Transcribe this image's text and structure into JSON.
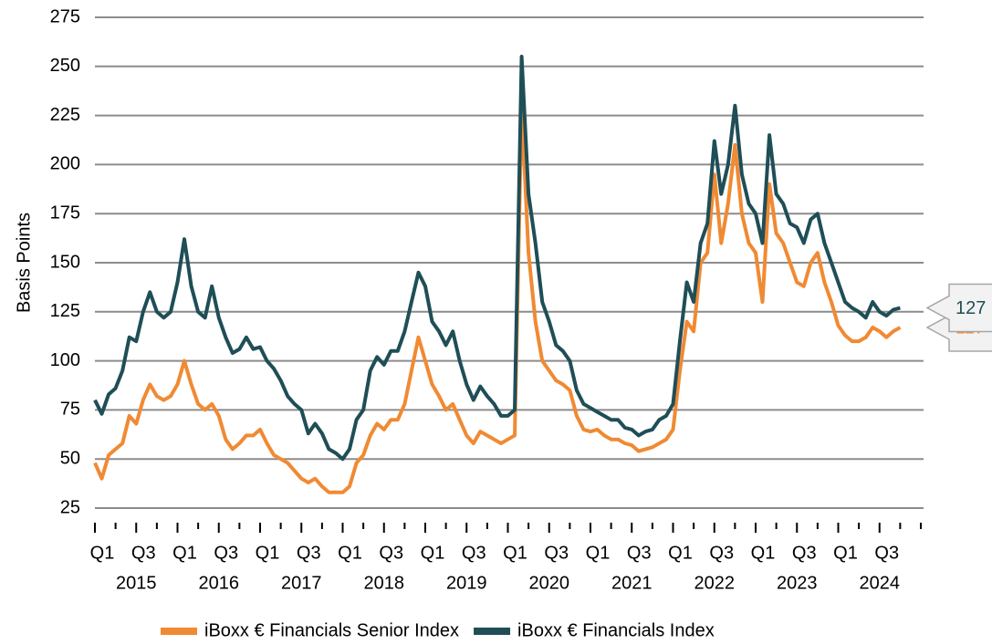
{
  "chart_data": {
    "type": "line",
    "y_label": "Basis Points",
    "x": [
      0,
      1,
      2,
      3,
      4,
      5,
      6,
      7,
      8,
      9,
      10,
      11,
      12,
      13,
      14,
      15,
      16,
      17,
      18,
      19,
      20,
      21,
      22,
      23,
      24,
      25,
      26,
      27,
      28,
      29,
      30,
      31,
      32,
      33,
      34,
      35,
      36,
      37,
      38,
      39,
      40,
      41,
      42,
      43,
      44,
      45,
      46,
      47,
      48,
      49,
      50,
      51,
      52,
      53,
      54,
      55,
      56,
      57,
      58,
      59,
      60,
      61,
      62,
      63,
      64,
      65,
      66,
      67,
      68,
      69,
      70,
      71,
      72,
      73,
      74,
      75,
      76,
      77,
      78,
      79,
      80,
      81,
      82,
      83,
      84,
      85,
      86,
      87,
      88,
      89,
      90,
      91,
      92,
      93,
      94,
      95,
      96,
      97,
      98,
      99,
      100,
      101,
      102,
      103,
      104,
      105,
      106,
      107,
      108,
      109,
      110,
      111,
      112,
      113,
      114,
      115,
      116,
      117
    ],
    "xlim": [
      0,
      120
    ],
    "xticks": [
      {
        "value": 0,
        "label": "Q1"
      },
      {
        "value": 6,
        "label": "Q3"
      },
      {
        "value": 12,
        "label": "Q1"
      },
      {
        "value": 18,
        "label": "Q3"
      },
      {
        "value": 24,
        "label": "Q1"
      },
      {
        "value": 30,
        "label": "Q3"
      },
      {
        "value": 36,
        "label": "Q1"
      },
      {
        "value": 42,
        "label": "Q3"
      },
      {
        "value": 48,
        "label": "Q1"
      },
      {
        "value": 54,
        "label": "Q3"
      },
      {
        "value": 60,
        "label": "Q1"
      },
      {
        "value": 66,
        "label": "Q3"
      },
      {
        "value": 72,
        "label": "Q1"
      },
      {
        "value": 78,
        "label": "Q3"
      },
      {
        "value": 84,
        "label": "Q1"
      },
      {
        "value": 90,
        "label": "Q3"
      },
      {
        "value": 96,
        "label": "Q1"
      },
      {
        "value": 102,
        "label": "Q3"
      },
      {
        "value": 108,
        "label": "Q1"
      },
      {
        "value": 114,
        "label": "Q3"
      }
    ],
    "xminor_ticks": [
      3,
      9,
      15,
      21,
      27,
      33,
      39,
      45,
      51,
      57,
      63,
      69,
      75,
      81,
      87,
      93,
      99,
      105,
      111,
      117,
      120
    ],
    "x_groups": [
      {
        "value": 6,
        "label": "2015"
      },
      {
        "value": 18,
        "label": "2016"
      },
      {
        "value": 30,
        "label": "2017"
      },
      {
        "value": 42,
        "label": "2018"
      },
      {
        "value": 54,
        "label": "2019"
      },
      {
        "value": 66,
        "label": "2020"
      },
      {
        "value": 78,
        "label": "2021"
      },
      {
        "value": 90,
        "label": "2022"
      },
      {
        "value": 102,
        "label": "2023"
      },
      {
        "value": 114,
        "label": "2024"
      }
    ],
    "ylim": [
      25,
      275
    ],
    "yticks": [
      25,
      50,
      75,
      100,
      125,
      150,
      175,
      200,
      225,
      250,
      275
    ],
    "grid": true,
    "legend": "bottom",
    "series": [
      {
        "name": "iBoxx € Financials Senior Index",
        "color": "#f08a33",
        "last_label": 117,
        "values": [
          48,
          40,
          52,
          55,
          58,
          72,
          68,
          80,
          88,
          82,
          80,
          82,
          88,
          100,
          88,
          78,
          75,
          78,
          72,
          60,
          55,
          58,
          62,
          62,
          65,
          58,
          52,
          50,
          48,
          44,
          40,
          38,
          40,
          36,
          33,
          33,
          33,
          36,
          48,
          52,
          62,
          68,
          65,
          70,
          70,
          78,
          95,
          112,
          100,
          88,
          82,
          75,
          78,
          70,
          62,
          58,
          64,
          62,
          60,
          58,
          60,
          62,
          230,
          155,
          120,
          100,
          95,
          90,
          88,
          85,
          72,
          65,
          64,
          65,
          62,
          60,
          60,
          58,
          57,
          54,
          55,
          56,
          58,
          60,
          65,
          95,
          120,
          115,
          150,
          155,
          195,
          160,
          180,
          210,
          175,
          160,
          155,
          130,
          190,
          165,
          160,
          150,
          140,
          138,
          150,
          155,
          140,
          130,
          118,
          113,
          110,
          110,
          112,
          117,
          115,
          112,
          115,
          117
        ]
      },
      {
        "name": "iBoxx € Financials Index",
        "color": "#1f4e57",
        "last_label": 127,
        "values": [
          80,
          73,
          83,
          86,
          95,
          112,
          110,
          125,
          135,
          125,
          122,
          125,
          140,
          162,
          138,
          125,
          122,
          138,
          122,
          112,
          104,
          106,
          112,
          106,
          107,
          100,
          96,
          90,
          82,
          78,
          75,
          63,
          68,
          63,
          55,
          53,
          50,
          55,
          70,
          75,
          95,
          102,
          98,
          105,
          105,
          115,
          130,
          145,
          138,
          120,
          115,
          108,
          115,
          100,
          88,
          80,
          87,
          82,
          78,
          72,
          72,
          75,
          255,
          185,
          160,
          130,
          120,
          108,
          105,
          100,
          85,
          78,
          76,
          74,
          72,
          70,
          70,
          66,
          65,
          62,
          64,
          65,
          70,
          72,
          78,
          110,
          140,
          130,
          160,
          170,
          212,
          185,
          200,
          230,
          195,
          180,
          175,
          160,
          215,
          185,
          180,
          170,
          168,
          160,
          172,
          175,
          160,
          150,
          140,
          130,
          127,
          125,
          122,
          130,
          125,
          123,
          126,
          127
        ]
      }
    ]
  }
}
